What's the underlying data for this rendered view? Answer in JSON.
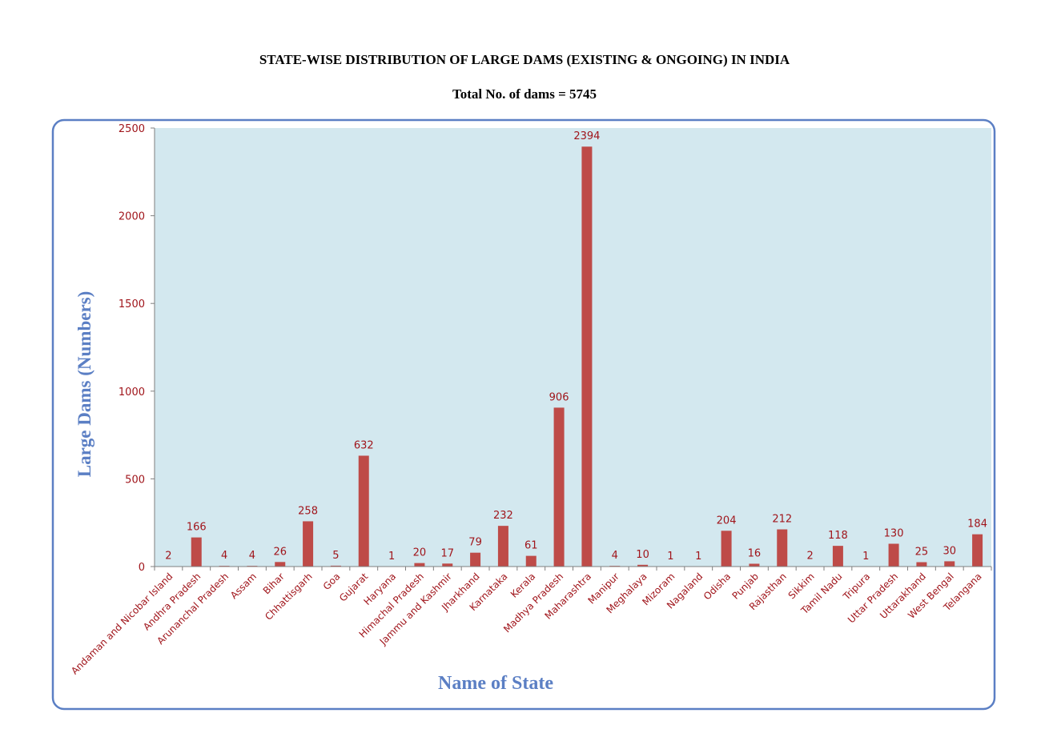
{
  "chart_data": {
    "type": "bar",
    "title": "STATE-WISE DISTRIBUTION OF LARGE DAMS (EXISTING & ONGOING) IN INDIA",
    "subtitle": "Total No. of dams = 5745",
    "xlabel": "Name of State",
    "ylabel": "Large Dams (Numbers)",
    "ylim": [
      0,
      2500
    ],
    "yticks": [
      "0",
      "500",
      "1000",
      "1500",
      "2000",
      "2500"
    ],
    "grid": false,
    "legend": "none",
    "categories": [
      "Andaman and Nicobar Island",
      "Andhra Pradesh",
      "Arunanchal Pradesh",
      "Assam",
      "Bihar",
      "Chhattisgarh",
      "Goa",
      "Gujarat",
      "Haryana",
      "Himachal Pradesh",
      "Jammu and Kashmir",
      "Jharkhand",
      "Karnataka",
      "Kerala",
      "Madhya Pradesh",
      "Maharashtra",
      "Manipur",
      "Meghalaya",
      "Mizoram",
      "Nagaland",
      "Odisha",
      "Punjab",
      "Rajasthan",
      "Sikkim",
      "Tamil Nadu",
      "Tripura",
      "Uttar Pradesh",
      "Uttarakhand",
      "West Bengal",
      "Telangana"
    ],
    "values": [
      2,
      166,
      4,
      4,
      26,
      258,
      5,
      632,
      1,
      20,
      17,
      79,
      232,
      61,
      906,
      2394,
      4,
      10,
      1,
      1,
      204,
      16,
      212,
      2,
      118,
      1,
      130,
      25,
      30,
      184
    ],
    "colors": {
      "bar": "#BE4B48",
      "plot_background": "#D3E8EF",
      "frame_border": "#5B7FC4",
      "axis_label": "#5B7FC4",
      "tick_label": "#A0151B",
      "data_label": "#A0151B"
    }
  }
}
